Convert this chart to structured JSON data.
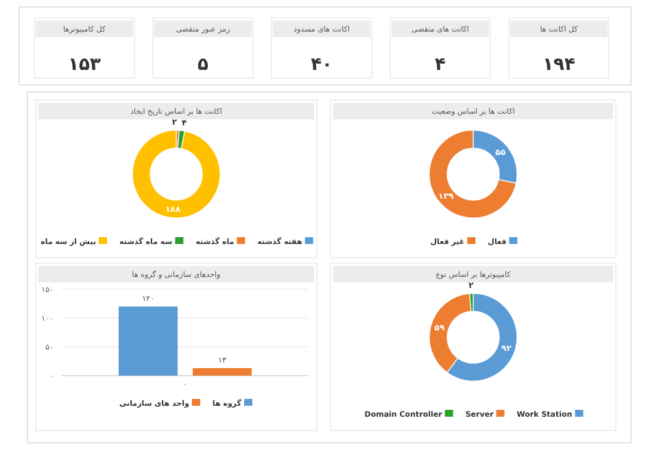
{
  "chart_data": [
    {
      "type": "other",
      "categories": [
        "کل اکانت ها",
        "اکانت های منقضی",
        "اکانت های مسدود",
        "رمز عبور منقضی",
        "کل کامپیوترها"
      ],
      "values": [
        194,
        4,
        40,
        5,
        153
      ],
      "value_labels": [
        "۱۹۴",
        "۴",
        "۴۰",
        "۵",
        "۱۵۳"
      ]
    },
    {
      "type": "donut",
      "title": "اکانت ها بر اساس وضعیت",
      "categories": [
        "فعال",
        "غیر فعال"
      ],
      "values": [
        55,
        139
      ],
      "colors": [
        "#5b9bd5",
        "#ed7d31"
      ],
      "value_labels": [
        "۵۵",
        "۱۳۹"
      ],
      "legend": "bottom"
    },
    {
      "type": "donut",
      "title": "اکانت ها بر اساس تاریخ ایجاد",
      "categories": [
        "هفته گذشته",
        "ماه گذشته",
        "سه ماه گذشته",
        "بیش از سه ماه"
      ],
      "values": [
        0,
        2,
        4,
        188
      ],
      "colors": [
        "#5b9bd5",
        "#ed7d31",
        "#2ca02c",
        "#ffc000"
      ],
      "value_labels": [
        null,
        "۲",
        "۴",
        "۱۸۸"
      ],
      "legend": "bottom"
    },
    {
      "type": "donut",
      "title": "کامپیوترها بر اساس نوع",
      "categories": [
        "Work Station",
        "Server",
        "Domain Controller"
      ],
      "values": [
        92,
        59,
        2
      ],
      "colors": [
        "#5b9bd5",
        "#ed7d31",
        "#2ca02c"
      ],
      "value_labels": [
        "۹۲",
        "۵۹",
        "۲"
      ],
      "legend": "bottom"
    },
    {
      "type": "bar",
      "title": "واحدهای سازمانی و گروه ها",
      "categories": [
        "۰"
      ],
      "series": [
        {
          "name": "گروه ها",
          "color": "#5b9bd5",
          "values": [
            120
          ],
          "value_labels": [
            "۱۲۰"
          ]
        },
        {
          "name": "واحد های سازمانی",
          "color": "#ed7d31",
          "values": [
            13
          ],
          "value_labels": [
            "۱۳"
          ]
        }
      ],
      "ylim": [
        0,
        150
      ],
      "yticks": [
        {
          "value": 0,
          "label": "۰"
        },
        {
          "value": 50,
          "label": "۵۰"
        },
        {
          "value": 100,
          "label": "۱۰۰"
        },
        {
          "value": 150,
          "label": "۱۵۰"
        }
      ],
      "grid": "y",
      "legend": "bottom"
    }
  ]
}
